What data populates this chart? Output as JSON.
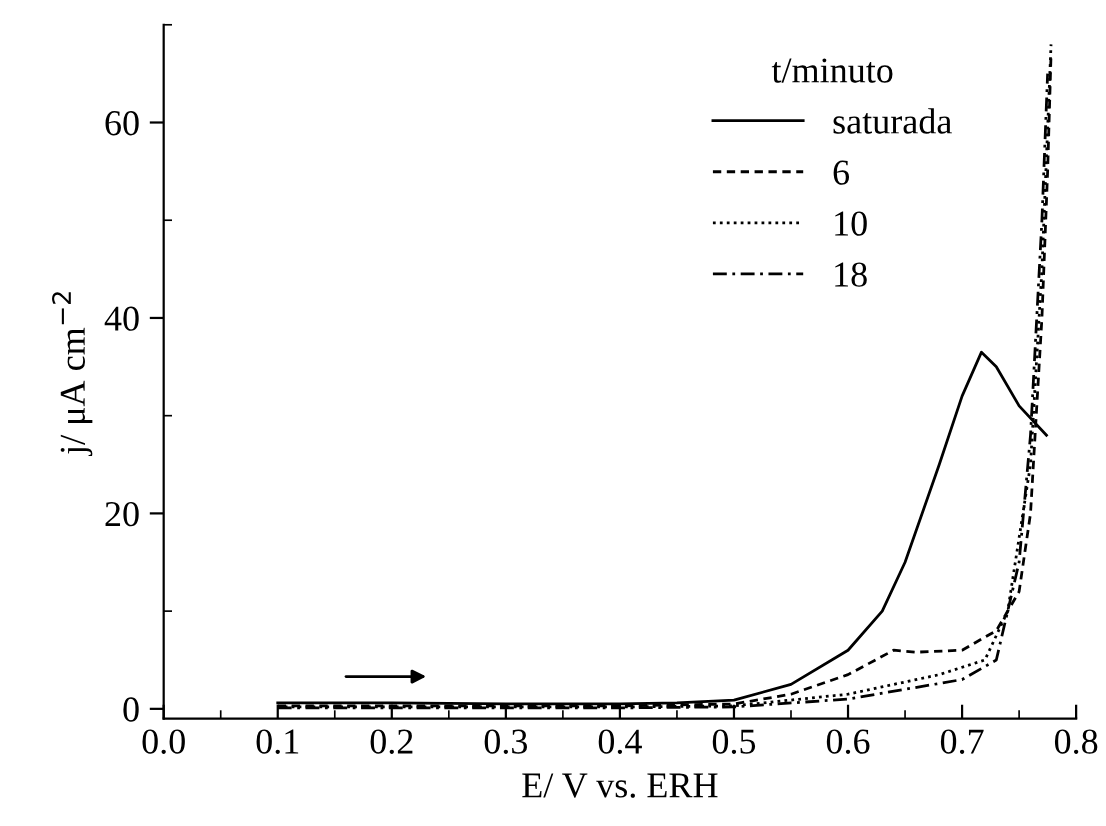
{
  "chart_data": {
    "type": "line",
    "xlabel": "E/ V vs. ERH",
    "ylabel": "j/ μA cm$^{−2}$",
    "legend_title": "t/minuto",
    "legend": "top right",
    "xlim": [
      0.0,
      0.8
    ],
    "xticks": [
      {
        "value": 0.0,
        "label": "0.0"
      },
      0.1,
      0.2,
      0.3,
      0.4,
      0.5,
      0.6,
      0.7,
      0.8
    ],
    "ylim": [
      -1,
      70
    ],
    "yticks": [
      0,
      20,
      40,
      60
    ],
    "grid": false,
    "series": [
      {
        "name": "saturada",
        "color": "#000000",
        "line_style": "solid",
        "x": [
          0.1,
          0.2,
          0.3,
          0.4,
          0.45,
          0.5,
          0.55,
          0.6,
          0.63,
          0.65,
          0.68,
          0.7,
          0.717,
          0.73,
          0.75,
          0.774
        ],
        "values": [
          0.6,
          0.6,
          0.5,
          0.5,
          0.6,
          0.9,
          2.5,
          6,
          10,
          15,
          25,
          32,
          36.5,
          35,
          31,
          28
        ]
      },
      {
        "name": "6",
        "color": "#000000",
        "line_style": "dashed",
        "x": [
          0.1,
          0.2,
          0.3,
          0.4,
          0.5,
          0.55,
          0.6,
          0.64,
          0.66,
          0.7,
          0.73,
          0.75,
          0.76,
          0.77,
          0.775,
          0.778
        ],
        "values": [
          0.3,
          0.3,
          0.3,
          0.3,
          0.5,
          1.5,
          3.5,
          6,
          5.8,
          6,
          8,
          12,
          20,
          40,
          55,
          67
        ]
      },
      {
        "name": "10",
        "color": "#000000",
        "line_style": "dotted",
        "x": [
          0.1,
          0.2,
          0.3,
          0.4,
          0.5,
          0.6,
          0.68,
          0.72,
          0.74,
          0.76,
          0.77,
          0.778
        ],
        "values": [
          0.2,
          0.2,
          0.2,
          0.2,
          0.3,
          1.5,
          3.5,
          5,
          10,
          25,
          45,
          68
        ]
      },
      {
        "name": "18",
        "color": "#000000",
        "line_style": "dashdot",
        "x": [
          0.1,
          0.2,
          0.3,
          0.4,
          0.5,
          0.6,
          0.7,
          0.73,
          0.75,
          0.76,
          0.77,
          0.775
        ],
        "values": [
          0.1,
          0.1,
          0.1,
          0.1,
          0.2,
          1,
          3,
          5,
          15,
          28,
          50,
          65
        ]
      }
    ]
  }
}
